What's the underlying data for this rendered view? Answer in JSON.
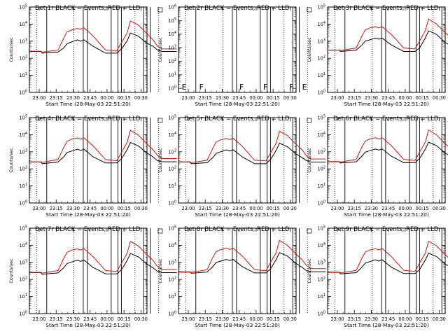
{
  "figure": {
    "ylabel": "Counts/sec",
    "xlabel": "Start Time (28-May-03 22:51:20)",
    "legend_text": "BLACK = Events, RED = LLD",
    "series_colors": {
      "events": "#000000",
      "lld": "#e01010"
    }
  },
  "chart_data": [
    {
      "type": "line",
      "title": "Det 1r BLACK = Events, RED = LLD",
      "xlabel": "Start Time (28-May-03 22:51:20)",
      "ylabel": "Counts/sec",
      "xtick_labels": [
        "23:00",
        "23:15",
        "23:30",
        "23:45",
        "00:00",
        "00:15",
        "00:30"
      ],
      "x_minutes": [
        -51.3,
        -41,
        -40,
        -26,
        -21,
        -18,
        -14,
        -9,
        -6,
        -3,
        5,
        16,
        26,
        30,
        35,
        38,
        45,
        52,
        58,
        62,
        66,
        79
      ],
      "ytick_labels": [
        "10^0",
        "10^1",
        "10^2",
        "10^3",
        "10^4",
        "10^5"
      ],
      "ylim": [
        1,
        100000
      ],
      "yscale": "log",
      "series": [
        {
          "key": "events",
          "values": [
            250,
            250,
            200,
            230,
            400,
            700,
            900,
            1200,
            1000,
            1200,
            500,
            200,
            200,
            350,
            1000,
            3000,
            2000,
            800,
            500,
            300,
            250,
            250
          ]
        },
        {
          "key": "lld",
          "values": [
            260,
            260,
            230,
            300,
            1500,
            3500,
            4500,
            5500,
            5000,
            6000,
            2000,
            300,
            280,
            800,
            3000,
            15000,
            9000,
            3000,
            1200,
            500,
            350,
            350
          ]
        }
      ],
      "vlines_solid_min": [
        -36,
        -3.7,
        0,
        21,
        27,
        30,
        49.7,
        55.5
      ],
      "vlines_dotted_min": [
        -45,
        -12,
        42,
        63
      ],
      "flags": []
    },
    {
      "type": "line",
      "title": "Det 2r BLACK = Events, RED = LLD",
      "xlabel": "Start Time (28-May-03 22:51:20)",
      "ylabel": "Counts/sec",
      "xtick_labels": [
        "23:00",
        "23:15",
        "23:30",
        "23:45",
        "00:00",
        "00:15",
        "00:30"
      ],
      "ytick_labels": [
        "10^0",
        "10^1",
        "10^2",
        "10^3",
        "10^4",
        "10^5",
        "10^6"
      ],
      "ylim": [
        0.5,
        1000000
      ],
      "yscale": "log",
      "series": [],
      "vlines_solid_min": [
        -36,
        -3.7,
        0,
        21,
        27,
        30,
        49.7,
        55.5
      ],
      "vlines_dotted_min": [
        -45,
        -12,
        42,
        63
      ],
      "flags": [
        {
          "x_min": -48.5,
          "label": "E"
        },
        {
          "x_min": -33,
          "label": "F"
        },
        {
          "x_min": 2.5,
          "label": "F"
        },
        {
          "x_min": 23.5,
          "label": "F"
        },
        {
          "x_min": 46.5,
          "label": "F"
        },
        {
          "x_min": 58,
          "label": "E"
        }
      ]
    },
    {
      "type": "line",
      "title": "Det 3r BLACK = Events, RED = LLD",
      "xlabel": "Start Time (28-May-03 22:51:20)",
      "ylabel": "Counts/sec",
      "xtick_labels": [
        "23:00",
        "23:15",
        "23:30",
        "23:45",
        "00:00",
        "00:15",
        "00:30"
      ],
      "x_minutes": [
        -51.3,
        -41,
        -40,
        -26,
        -21,
        -18,
        -14,
        -9,
        -6,
        -3,
        5,
        16,
        26,
        30,
        35,
        38,
        45,
        52,
        58,
        62,
        66,
        79
      ],
      "ytick_labels": [
        "10^0",
        "10^1",
        "10^2",
        "10^3",
        "10^4",
        "10^5"
      ],
      "ylim": [
        1,
        100000
      ],
      "yscale": "log",
      "series": [
        {
          "key": "events",
          "values": [
            300,
            300,
            250,
            300,
            600,
            1000,
            1200,
            1500,
            1300,
            1500,
            600,
            250,
            250,
            400,
            1500,
            4000,
            2500,
            900,
            500,
            300,
            300,
            300
          ]
        },
        {
          "key": "lld",
          "values": [
            300,
            300,
            280,
            400,
            2000,
            4500,
            6000,
            7000,
            6000,
            7000,
            2500,
            400,
            350,
            1000,
            4000,
            20000,
            10000,
            3500,
            1500,
            700,
            500,
            500
          ]
        }
      ],
      "vlines_solid_min": [
        -36,
        -3.7,
        0,
        21,
        27,
        30,
        49.7,
        55.5
      ],
      "vlines_dotted_min": [
        -45,
        -12,
        42,
        63
      ],
      "flags": []
    },
    {
      "type": "line",
      "title": "Det 4r BLACK = Events, RED = LLD",
      "xlabel": "Start Time (28-May-03 22:51:20)",
      "ylabel": "Counts/sec",
      "xtick_labels": [
        "23:00",
        "23:15",
        "23:30",
        "23:45",
        "00:00",
        "00:15",
        "00:30"
      ],
      "x_minutes": [
        -51.3,
        -41,
        -40,
        -26,
        -21,
        -18,
        -14,
        -9,
        -6,
        -3,
        5,
        16,
        26,
        30,
        35,
        38,
        45,
        52,
        58,
        62,
        66,
        79
      ],
      "ytick_labels": [
        "10^0",
        "10^1",
        "10^2",
        "10^3",
        "10^4",
        "10^5"
      ],
      "ylim": [
        1,
        100000
      ],
      "yscale": "log",
      "series": [
        {
          "key": "events",
          "values": [
            250,
            250,
            200,
            250,
            500,
            900,
            1100,
            1400,
            1200,
            1400,
            500,
            220,
            220,
            380,
            1300,
            3500,
            2200,
            900,
            500,
            300,
            260,
            260
          ]
        },
        {
          "key": "lld",
          "values": [
            260,
            260,
            240,
            350,
            1800,
            4000,
            5500,
            6500,
            5500,
            6500,
            2200,
            350,
            300,
            900,
            3500,
            18000,
            9500,
            3200,
            1300,
            600,
            400,
            400
          ]
        }
      ],
      "vlines_solid_min": [
        -36,
        -3.7,
        0,
        21,
        27,
        30,
        49.7,
        55.5
      ],
      "vlines_dotted_min": [
        -45,
        -12,
        42,
        63
      ],
      "flags": []
    },
    {
      "type": "line",
      "title": "Det 5r BLACK = Events, RED = LLD",
      "xlabel": "Start Time (28-May-03 22:51:20)",
      "ylabel": "Counts/sec",
      "xtick_labels": [
        "23:00",
        "23:15",
        "23:30",
        "23:45",
        "00:00",
        "00:15",
        "00:30"
      ],
      "x_minutes": [
        -51.3,
        -41,
        -40,
        -26,
        -21,
        -18,
        -14,
        -9,
        -6,
        -3,
        5,
        16,
        26,
        30,
        35,
        38,
        45,
        52,
        58,
        62,
        66,
        79
      ],
      "ytick_labels": [
        "10^0",
        "10^1",
        "10^2",
        "10^3",
        "10^4",
        "10^5"
      ],
      "ylim": [
        1,
        100000
      ],
      "yscale": "log",
      "series": [
        {
          "key": "events",
          "values": [
            250,
            250,
            200,
            230,
            450,
            800,
            1000,
            1300,
            1100,
            1300,
            500,
            200,
            200,
            350,
            1200,
            3200,
            2000,
            800,
            450,
            300,
            250,
            250
          ]
        },
        {
          "key": "lld",
          "values": [
            260,
            260,
            230,
            320,
            1600,
            3800,
            5000,
            6000,
            5200,
            6200,
            2100,
            320,
            290,
            850,
            3200,
            16000,
            9000,
            3000,
            1300,
            550,
            380,
            380
          ]
        }
      ],
      "vlines_solid_min": [
        -36,
        -3.7,
        0,
        21,
        27,
        30,
        49.7,
        55.5
      ],
      "vlines_dotted_min": [
        -45,
        -12,
        42,
        63
      ],
      "flags": []
    },
    {
      "type": "line",
      "title": "Det 6r BLACK = Events, RED = LLD",
      "xlabel": "Start Time (28-May-03 22:51:20)",
      "ylabel": "Counts/sec",
      "xtick_labels": [
        "23:00",
        "23:15",
        "23:30",
        "23:45",
        "00:00",
        "00:15",
        "00:30"
      ],
      "x_minutes": [
        -51.3,
        -41,
        -40,
        -26,
        -21,
        -18,
        -14,
        -9,
        -6,
        -3,
        5,
        16,
        26,
        30,
        35,
        38,
        45,
        52,
        58,
        62,
        66,
        79
      ],
      "ytick_labels": [
        "10^0",
        "10^1",
        "10^2",
        "10^3",
        "10^4",
        "10^5"
      ],
      "ylim": [
        1,
        100000
      ],
      "yscale": "log",
      "series": [
        {
          "key": "events",
          "values": [
            260,
            260,
            220,
            260,
            550,
            950,
            1150,
            1450,
            1250,
            1450,
            550,
            230,
            230,
            400,
            1400,
            3600,
            2300,
            900,
            500,
            310,
            270,
            270
          ]
        },
        {
          "key": "lld",
          "values": [
            270,
            270,
            250,
            360,
            1900,
            4200,
            5600,
            6600,
            5600,
            6600,
            2300,
            360,
            310,
            950,
            3600,
            19000,
            9800,
            3300,
            1350,
            620,
            420,
            420
          ]
        }
      ],
      "vlines_solid_min": [
        -36,
        -3.7,
        0,
        21,
        27,
        30,
        49.7,
        55.5
      ],
      "vlines_dotted_min": [
        -45,
        -12,
        42,
        63
      ],
      "flags": []
    },
    {
      "type": "line",
      "title": "Det 7r BLACK = Events, RED = LLD",
      "xlabel": "Start Time (28-May-03 22:51:20)",
      "ylabel": "Counts/sec",
      "xtick_labels": [
        "23:00",
        "23:15",
        "23:30",
        "23:45",
        "00:00",
        "00:15",
        "00:30"
      ],
      "x_minutes": [
        -51.3,
        -41,
        -40,
        -26,
        -21,
        -18,
        -14,
        -9,
        -6,
        -3,
        5,
        16,
        26,
        30,
        35,
        38,
        45,
        52,
        58,
        62,
        66,
        79
      ],
      "ytick_labels": [
        "10^0",
        "10^1",
        "10^2",
        "10^3",
        "10^4",
        "10^5"
      ],
      "ylim": [
        1,
        100000
      ],
      "yscale": "log",
      "series": [
        {
          "key": "events",
          "values": [
            250,
            250,
            200,
            240,
            480,
            850,
            1050,
            1350,
            1150,
            1350,
            500,
            210,
            210,
            360,
            1250,
            3300,
            2100,
            850,
            480,
            300,
            250,
            250
          ]
        },
        {
          "key": "lld",
          "values": [
            260,
            260,
            235,
            330,
            1700,
            3900,
            5200,
            6200,
            5300,
            6300,
            2150,
            330,
            295,
            870,
            3300,
            17000,
            9200,
            3100,
            1300,
            560,
            390,
            390
          ]
        }
      ],
      "vlines_solid_min": [
        -36,
        -3.7,
        0,
        21,
        27,
        30,
        49.7,
        55.5
      ],
      "vlines_dotted_min": [
        -45,
        -12,
        42,
        63
      ],
      "flags": []
    },
    {
      "type": "line",
      "title": "Det 8r BLACK = Events, RED = LLD",
      "xlabel": "Start Time (28-May-03 22:51:20)",
      "ylabel": "Counts/sec",
      "xtick_labels": [
        "23:00",
        "23:15",
        "23:30",
        "23:45",
        "00:00",
        "00:15",
        "00:30"
      ],
      "x_minutes": [
        -51.3,
        -41,
        -40,
        -26,
        -21,
        -18,
        -14,
        -9,
        -6,
        -3,
        5,
        16,
        26,
        30,
        35,
        38,
        45,
        52,
        58,
        62,
        66,
        79
      ],
      "ytick_labels": [
        "10^0",
        "10^1",
        "10^2",
        "10^3",
        "10^4",
        "10^5"
      ],
      "ylim": [
        1,
        100000
      ],
      "yscale": "log",
      "series": [
        {
          "key": "events",
          "values": [
            270,
            270,
            230,
            270,
            560,
            980,
            1180,
            1480,
            1280,
            1480,
            560,
            240,
            240,
            410,
            1450,
            3700,
            2350,
            920,
            510,
            320,
            280,
            280
          ]
        },
        {
          "key": "lld",
          "values": [
            280,
            280,
            260,
            370,
            1950,
            4300,
            5700,
            6700,
            5700,
            6700,
            2350,
            370,
            320,
            980,
            3700,
            19500,
            9900,
            3400,
            1400,
            640,
            430,
            430
          ]
        }
      ],
      "vlines_solid_min": [
        -36,
        -3.7,
        0,
        21,
        27,
        30,
        49.7,
        55.5
      ],
      "vlines_dotted_min": [
        -45,
        -12,
        42,
        63
      ],
      "flags": []
    },
    {
      "type": "line",
      "title": "Det 9r BLACK = Events, RED = LLD",
      "xlabel": "Start Time (28-May-03 22:51:20)",
      "ylabel": "Counts/sec",
      "xtick_labels": [
        "23:00",
        "23:15",
        "23:30",
        "23:45",
        "00:00",
        "00:15",
        "00:30"
      ],
      "x_minutes": [
        -51.3,
        -41,
        -40,
        -26,
        -21,
        -18,
        -14,
        -9,
        -6,
        -3,
        5,
        16,
        26,
        30,
        35,
        38,
        45,
        52,
        58,
        62,
        66,
        79
      ],
      "ytick_labels": [
        "10^0",
        "10^1",
        "10^2",
        "10^3",
        "10^4",
        "10^5"
      ],
      "ylim": [
        1,
        100000
      ],
      "yscale": "log",
      "series": [
        {
          "key": "events",
          "values": [
            260,
            260,
            210,
            250,
            520,
            900,
            1100,
            1400,
            1200,
            1400,
            520,
            220,
            220,
            380,
            1350,
            3400,
            2200,
            880,
            490,
            300,
            260,
            260
          ]
        },
        {
          "key": "lld",
          "values": [
            270,
            270,
            245,
            340,
            1750,
            4000,
            5300,
            6300,
            5400,
            6400,
            2200,
            340,
            300,
            900,
            3400,
            17500,
            9400,
            3150,
            1320,
            580,
            400,
            400
          ]
        }
      ],
      "vlines_solid_min": [
        -36,
        -3.7,
        0,
        21,
        27,
        30,
        49.7,
        55.5
      ],
      "vlines_dotted_min": [
        -45,
        -12,
        42,
        63
      ],
      "flags": []
    }
  ]
}
